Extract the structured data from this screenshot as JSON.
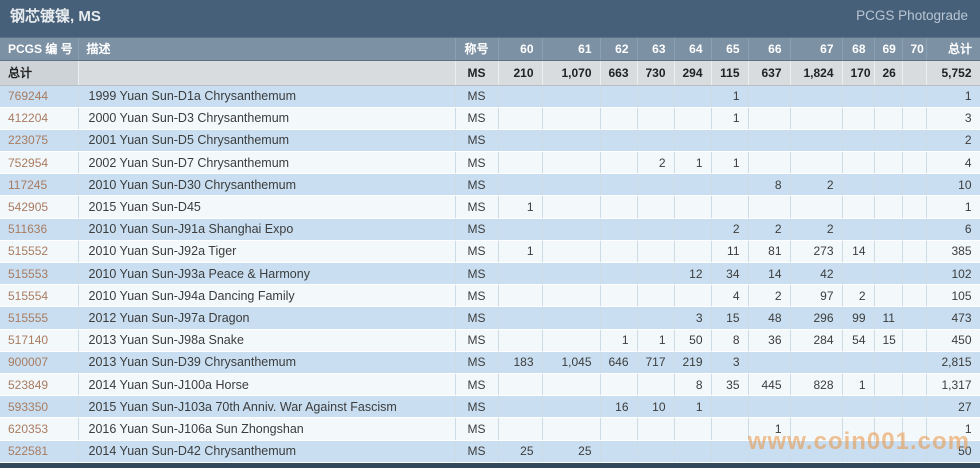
{
  "header": {
    "title": "钢芯镀镍, MS",
    "photograde_link": "PCGS Photograde"
  },
  "colors": {
    "titlebar_bg": "#47607a",
    "header_row_bg": "#7d91a5",
    "totals_row_bg": "#d8dcdf",
    "row_blue": "#c9dff1",
    "row_white": "#f3f8fb",
    "pcgs_number_link": "#a87b60",
    "watermark_orange": "#e9923e",
    "bottom_strip": "#32485d"
  },
  "table": {
    "columns": [
      "PCGS 编 号",
      "描述",
      "称号",
      "60",
      "61",
      "62",
      "63",
      "64",
      "65",
      "66",
      "67",
      "68",
      "69",
      "70",
      "总计"
    ],
    "totals": {
      "label": "总计",
      "desc": "",
      "designation": "MS",
      "values": [
        "210",
        "1,070",
        "663",
        "730",
        "294",
        "115",
        "637",
        "1,824",
        "170",
        "26",
        "",
        "5,752"
      ]
    },
    "rows": [
      {
        "id": "769244",
        "desc": "1999 Yuan Sun-D1a Chrysanthemum",
        "designation": "MS",
        "values": [
          "",
          "",
          "",
          "",
          "",
          "1",
          "",
          "",
          "",
          "",
          "",
          "1"
        ]
      },
      {
        "id": "412204",
        "desc": "2000 Yuan Sun-D3 Chrysanthemum",
        "designation": "MS",
        "values": [
          "",
          "",
          "",
          "",
          "",
          "1",
          "",
          "",
          "",
          "",
          "",
          "3"
        ]
      },
      {
        "id": "223075",
        "desc": "2001 Yuan Sun-D5 Chrysanthemum",
        "designation": "MS",
        "values": [
          "",
          "",
          "",
          "",
          "",
          "",
          "",
          "",
          "",
          "",
          "",
          "2"
        ]
      },
      {
        "id": "752954",
        "desc": "2002 Yuan Sun-D7 Chrysanthemum",
        "designation": "MS",
        "values": [
          "",
          "",
          "",
          "2",
          "1",
          "1",
          "",
          "",
          "",
          "",
          "",
          "4"
        ]
      },
      {
        "id": "117245",
        "desc": "2010 Yuan Sun-D30 Chrysanthemum",
        "designation": "MS",
        "values": [
          "",
          "",
          "",
          "",
          "",
          "",
          "8",
          "2",
          "",
          "",
          "",
          "10"
        ]
      },
      {
        "id": "542905",
        "desc": "2015 Yuan Sun-D45",
        "designation": "MS",
        "values": [
          "1",
          "",
          "",
          "",
          "",
          "",
          "",
          "",
          "",
          "",
          "",
          "1"
        ]
      },
      {
        "id": "511636",
        "desc": "2010 Yuan Sun-J91a Shanghai Expo",
        "designation": "MS",
        "values": [
          "",
          "",
          "",
          "",
          "",
          "2",
          "2",
          "2",
          "",
          "",
          "",
          "6"
        ]
      },
      {
        "id": "515552",
        "desc": "2010 Yuan Sun-J92a Tiger",
        "designation": "MS",
        "values": [
          "1",
          "",
          "",
          "",
          "",
          "11",
          "81",
          "273",
          "14",
          "",
          "",
          "385"
        ]
      },
      {
        "id": "515553",
        "desc": "2010 Yuan Sun-J93a Peace & Harmony",
        "designation": "MS",
        "values": [
          "",
          "",
          "",
          "",
          "12",
          "34",
          "14",
          "42",
          "",
          "",
          "",
          "102"
        ]
      },
      {
        "id": "515554",
        "desc": "2010 Yuan Sun-J94a Dancing Family",
        "designation": "MS",
        "values": [
          "",
          "",
          "",
          "",
          "",
          "4",
          "2",
          "97",
          "2",
          "",
          "",
          "105"
        ]
      },
      {
        "id": "515555",
        "desc": "2012 Yuan Sun-J97a Dragon",
        "designation": "MS",
        "values": [
          "",
          "",
          "",
          "",
          "3",
          "15",
          "48",
          "296",
          "99",
          "11",
          "",
          "473"
        ]
      },
      {
        "id": "517140",
        "desc": "2013 Yuan Sun-J98a Snake",
        "designation": "MS",
        "values": [
          "",
          "",
          "1",
          "1",
          "50",
          "8",
          "36",
          "284",
          "54",
          "15",
          "",
          "450"
        ]
      },
      {
        "id": "900007",
        "desc": "2013 Yuan Sun-D39 Chrysanthemum",
        "designation": "MS",
        "values": [
          "183",
          "1,045",
          "646",
          "717",
          "219",
          "3",
          "",
          "",
          "",
          "",
          "",
          "2,815"
        ]
      },
      {
        "id": "523849",
        "desc": "2014 Yuan Sun-J100a Horse",
        "designation": "MS",
        "values": [
          "",
          "",
          "",
          "",
          "8",
          "35",
          "445",
          "828",
          "1",
          "",
          "",
          "1,317"
        ]
      },
      {
        "id": "593350",
        "desc": "2015 Yuan Sun-J103a 70th Anniv. War Against Fascism",
        "designation": "MS",
        "values": [
          "",
          "",
          "16",
          "10",
          "1",
          "",
          "",
          "",
          "",
          "",
          "",
          "27"
        ]
      },
      {
        "id": "620353",
        "desc": "2016 Yuan Sun-J106a Sun Zhongshan",
        "designation": "MS",
        "values": [
          "",
          "",
          "",
          "",
          "",
          "",
          "1",
          "",
          "",
          "",
          "",
          "1"
        ]
      },
      {
        "id": "522581",
        "desc": "2014 Yuan Sun-D42 Chrysanthemum",
        "designation": "MS",
        "values": [
          "25",
          "25",
          "",
          "",
          "",
          "",
          "",
          "",
          "",
          "",
          "",
          "50"
        ]
      }
    ]
  },
  "watermark": "www.coin001.com"
}
